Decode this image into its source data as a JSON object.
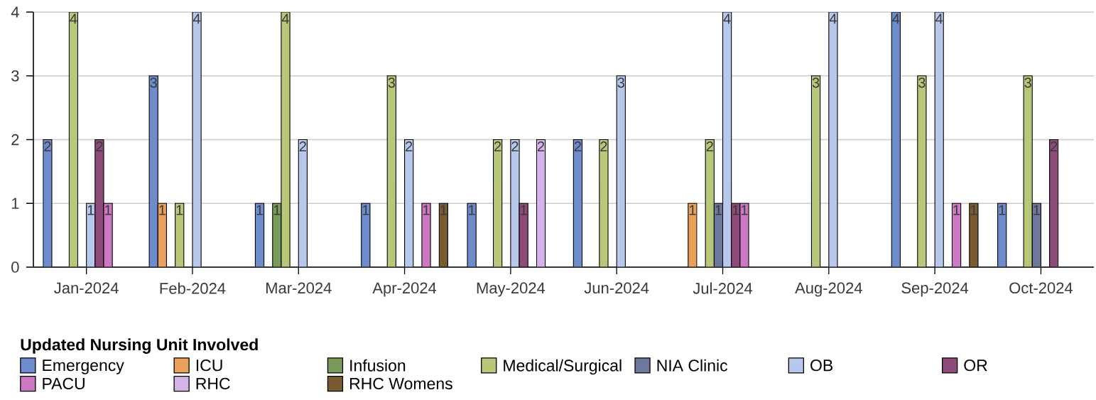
{
  "chart_data": {
    "type": "bar",
    "categories": [
      "Jan-2024",
      "Feb-2024",
      "Mar-2024",
      "Apr-2024",
      "May-2024",
      "Jun-2024",
      "Jul-2024",
      "Aug-2024",
      "Sep-2024",
      "Oct-2024"
    ],
    "series": [
      {
        "name": "Emergency",
        "color": "#6d8ccc",
        "values": [
          2,
          3,
          1,
          1,
          1,
          2,
          null,
          null,
          4,
          1
        ]
      },
      {
        "name": "ICU",
        "color": "#e8a05a",
        "values": [
          null,
          1,
          null,
          null,
          null,
          null,
          1,
          null,
          null,
          null
        ]
      },
      {
        "name": "Infusion",
        "color": "#7a9a5a",
        "values": [
          null,
          null,
          1,
          null,
          null,
          null,
          null,
          null,
          null,
          null
        ]
      },
      {
        "name": "Medical/Surgical",
        "color": "#b8c87a",
        "values": [
          4,
          1,
          4,
          3,
          2,
          2,
          2,
          3,
          3,
          3
        ]
      },
      {
        "name": "NIA Clinic",
        "color": "#6e789e",
        "values": [
          null,
          null,
          null,
          null,
          null,
          null,
          1,
          null,
          null,
          1
        ]
      },
      {
        "name": "OB",
        "color": "#b8c8ec",
        "values": [
          1,
          4,
          2,
          2,
          2,
          3,
          4,
          4,
          4,
          null
        ]
      },
      {
        "name": "OR",
        "color": "#8e4a78",
        "values": [
          2,
          null,
          null,
          null,
          1,
          null,
          1,
          null,
          null,
          2
        ]
      },
      {
        "name": "PACU",
        "color": "#cc78c4",
        "values": [
          1,
          null,
          null,
          1,
          null,
          null,
          1,
          null,
          1,
          null
        ]
      },
      {
        "name": "RHC",
        "color": "#d4b4e8",
        "values": [
          null,
          null,
          null,
          null,
          2,
          null,
          null,
          null,
          null,
          null
        ]
      },
      {
        "name": "RHC Womens",
        "color": "#7a5a30",
        "values": [
          null,
          null,
          null,
          1,
          null,
          null,
          null,
          null,
          1,
          null
        ]
      }
    ],
    "ylim": [
      0,
      4
    ],
    "yticks": [
      0,
      1,
      2,
      3,
      4
    ],
    "grid": "y",
    "legend": "bottom",
    "legend_title": "Updated Nursing Unit Involved",
    "data_labels": true
  }
}
